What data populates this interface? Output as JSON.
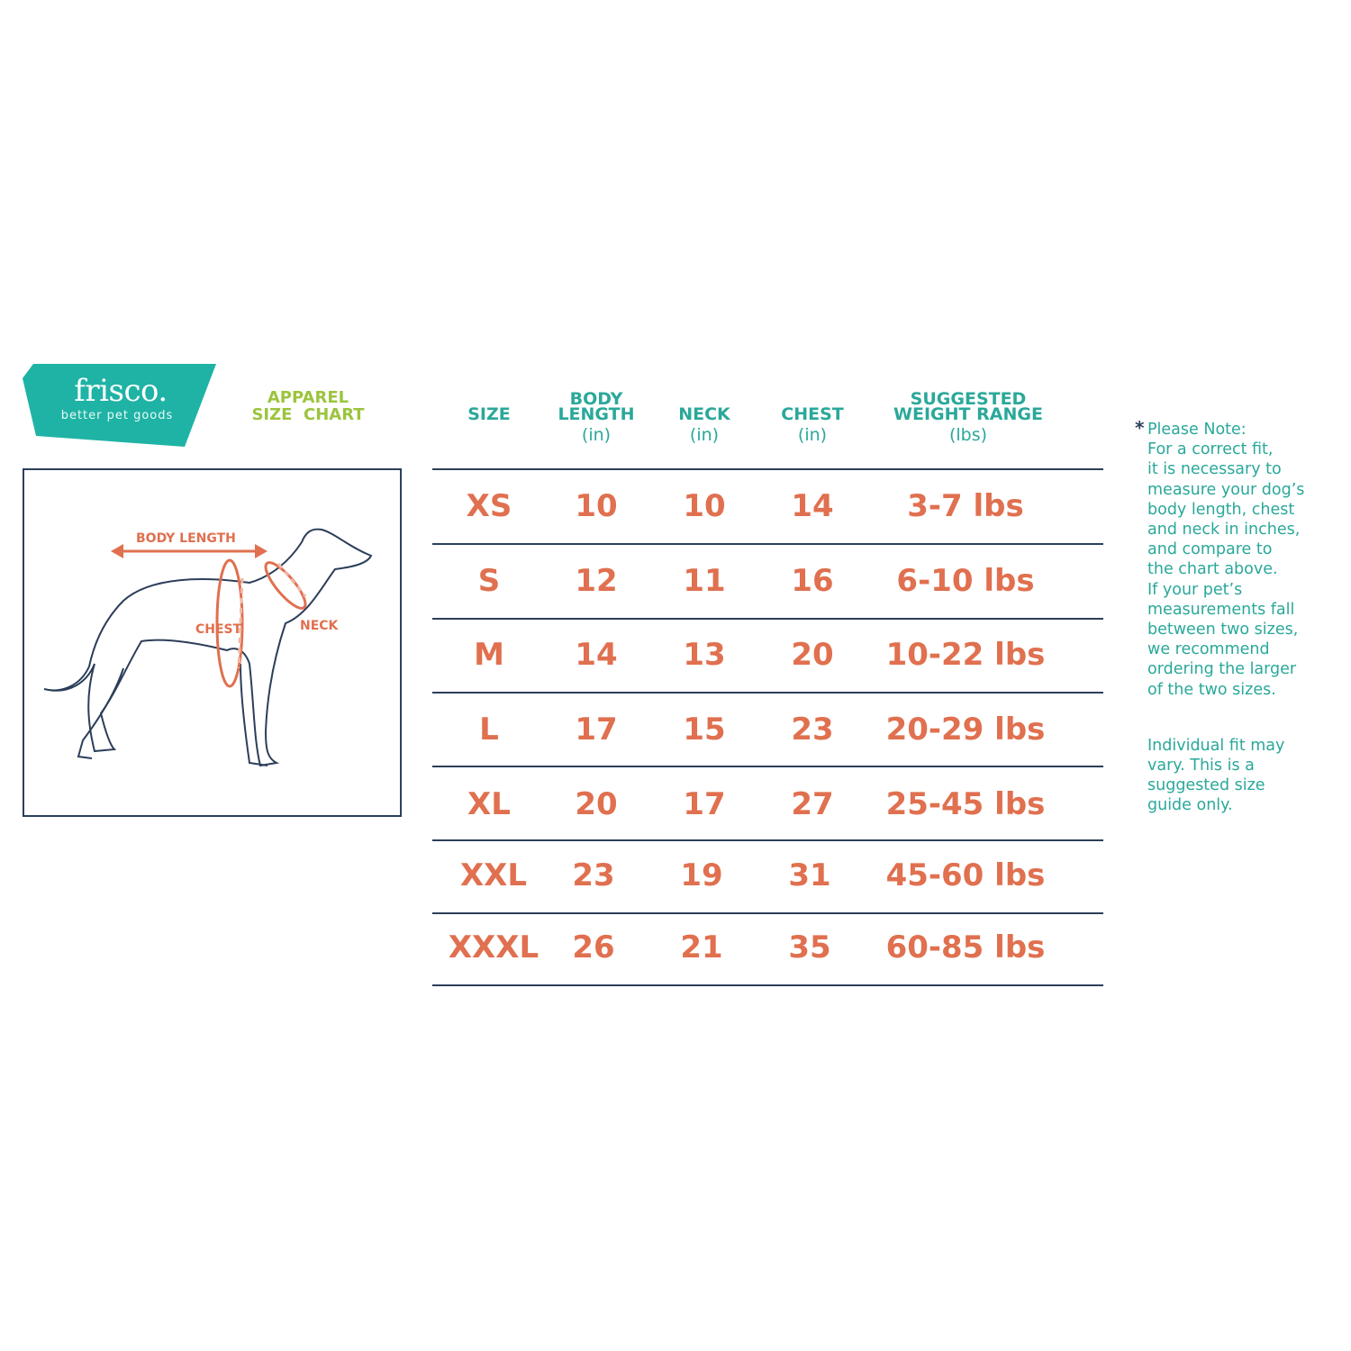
{
  "brand": {
    "name": "frisco.",
    "tagline": "better pet goods",
    "color": "#1fb3a5"
  },
  "title": {
    "line1": "APPAREL",
    "line2": "SIZE  CHART",
    "color": "#9cc43e"
  },
  "illustration": {
    "body_length_label": "BODY LENGTH",
    "chest_label": "CHEST",
    "neck_label": "NECK",
    "accent": "#e0704f"
  },
  "table": {
    "headers": [
      {
        "line1": "",
        "line2": "SIZE",
        "unit": ""
      },
      {
        "line1": "BODY",
        "line2": "LENGTH",
        "unit": "(in)"
      },
      {
        "line1": "",
        "line2": "NECK",
        "unit": "(in)"
      },
      {
        "line1": "",
        "line2": "CHEST",
        "unit": "(in)"
      },
      {
        "line1": "SUGGESTED",
        "line2": "WEIGHT RANGE",
        "unit": "(lbs)"
      }
    ],
    "rows": [
      [
        "XS",
        "10",
        "10",
        "14",
        "3-7 lbs"
      ],
      [
        "S",
        "12",
        "11",
        "16",
        "6-10 lbs"
      ],
      [
        "M",
        "14",
        "13",
        "20",
        "10-22 lbs"
      ],
      [
        "L",
        "17",
        "15",
        "23",
        "20-29 lbs"
      ],
      [
        "XL",
        "20",
        "17",
        "27",
        "25-45 lbs"
      ],
      [
        "XXL",
        "23",
        "19",
        "31",
        "45-60 lbs"
      ],
      [
        "XXXL",
        "26",
        "21",
        "35",
        "60-85 lbs"
      ]
    ]
  },
  "note": {
    "asterisk": "*",
    "lines": [
      "Please Note:",
      "For a correct fit,",
      "it is necessary to",
      "measure your dog’s",
      "body length, chest",
      "and neck in inches,",
      "and compare to",
      "the chart above.",
      "If your pet’s",
      "measurements fall",
      "between two sizes,",
      "we recommend",
      "ordering the larger",
      "of the two sizes."
    ],
    "disclaimer": [
      "Individual fit may",
      "vary. This is a",
      "suggested size",
      "guide only."
    ]
  }
}
